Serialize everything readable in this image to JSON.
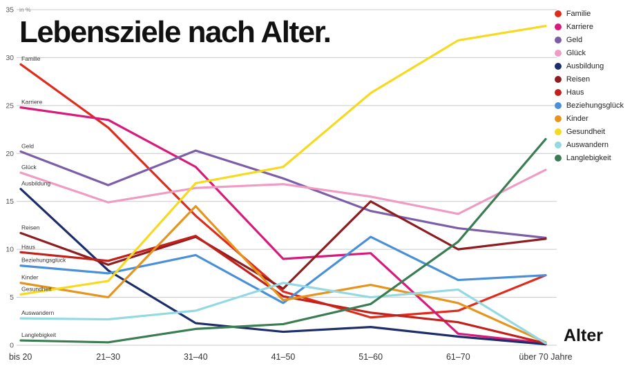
{
  "chart_data": {
    "type": "line",
    "title": "Lebensziele nach Alter.",
    "xlabel": "Alter",
    "ylabel_note": "in %",
    "categories": [
      "bis 20",
      "21–30",
      "31–40",
      "41–50",
      "51–60",
      "61–70",
      "über 70 Jahre"
    ],
    "y_ticks": [
      0,
      5,
      10,
      15,
      20,
      25,
      30,
      35
    ],
    "ylim": [
      0,
      35
    ],
    "grid": true,
    "legend_position": "top-right",
    "series": [
      {
        "name": "Familie",
        "color": "#df2b1c",
        "values": [
          29.3,
          22.7,
          13.5,
          5.6,
          2.9,
          3.6,
          7.3
        ]
      },
      {
        "name": "Karriere",
        "color": "#d81b7a",
        "values": [
          24.8,
          23.5,
          18.6,
          9.0,
          9.6,
          1.2,
          0.2
        ]
      },
      {
        "name": "Geld",
        "color": "#7b5ea7",
        "values": [
          20.2,
          16.7,
          20.3,
          17.4,
          14.0,
          12.2,
          11.2
        ]
      },
      {
        "name": "Glück",
        "color": "#ef9cc4",
        "values": [
          18.0,
          14.9,
          16.4,
          16.8,
          15.5,
          13.7,
          18.3
        ]
      },
      {
        "name": "Ausbildung",
        "color": "#1c2d69",
        "values": [
          16.3,
          7.8,
          2.3,
          1.4,
          1.9,
          0.9,
          0.1
        ]
      },
      {
        "name": "Reisen",
        "color": "#8e1d22",
        "values": [
          11.7,
          8.4,
          11.3,
          5.9,
          15.0,
          10.0,
          11.1
        ]
      },
      {
        "name": "Haus",
        "color": "#c2201a",
        "values": [
          9.7,
          8.8,
          11.4,
          5.1,
          3.4,
          2.4,
          0.2
        ]
      },
      {
        "name": "Beziehungsglück",
        "color": "#4a90d9",
        "values": [
          8.3,
          7.5,
          9.4,
          4.4,
          11.3,
          6.8,
          7.3
        ]
      },
      {
        "name": "Kinder",
        "color": "#e5941d",
        "values": [
          6.5,
          5.0,
          14.5,
          4.7,
          6.3,
          4.4,
          0.3
        ]
      },
      {
        "name": "Gesundheit",
        "color": "#f6da1f",
        "values": [
          5.3,
          6.7,
          16.9,
          18.6,
          26.3,
          31.8,
          33.3
        ]
      },
      {
        "name": "Auswandern",
        "color": "#93d9e3",
        "values": [
          2.8,
          2.7,
          3.6,
          6.5,
          5.0,
          5.8,
          0.2
        ]
      },
      {
        "name": "Langlebigkeit",
        "color": "#3a7d52",
        "values": [
          0.5,
          0.3,
          1.7,
          2.2,
          4.3,
          10.8,
          21.5
        ]
      }
    ]
  }
}
